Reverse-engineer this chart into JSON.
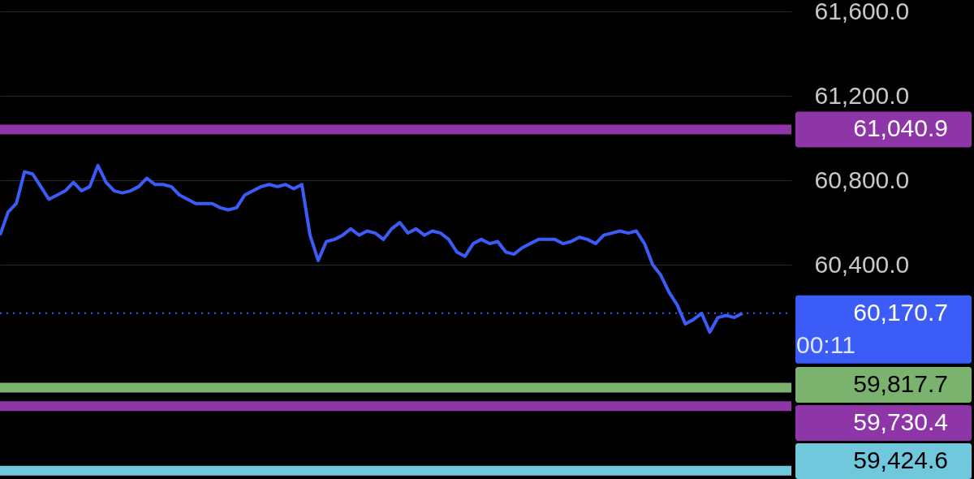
{
  "chart_data": {
    "type": "line",
    "categories": [
      null,
      null,
      null,
      null,
      null,
      null,
      null,
      null,
      null,
      null,
      null,
      null,
      null,
      null,
      null,
      null,
      null,
      null,
      null,
      null,
      null,
      null,
      null,
      null,
      null,
      null,
      null,
      null,
      null,
      null,
      null,
      null,
      null,
      null,
      null,
      null,
      null,
      null,
      null,
      null,
      null,
      null,
      null,
      null,
      null,
      null,
      null,
      null,
      null,
      null,
      null,
      null,
      null,
      null,
      null,
      null,
      null,
      null,
      null,
      null,
      null,
      null,
      null,
      null,
      null,
      null,
      null,
      null,
      null,
      null,
      null,
      null,
      null,
      null,
      null,
      null,
      null,
      null,
      null,
      null,
      null,
      null,
      null,
      null,
      null,
      null,
      null,
      null,
      null,
      null,
      null,
      null,
      null,
      null,
      null,
      null,
      null,
      null
    ],
    "series": [
      {
        "color": "#3b5cf6",
        "values": [
          60540,
          60650,
          60690,
          60840,
          60830,
          60770,
          60710,
          60730,
          60750,
          60790,
          60750,
          60770,
          60870,
          60790,
          60750,
          60740,
          60750,
          60770,
          60810,
          60780,
          60780,
          60770,
          60730,
          60710,
          60690,
          60690,
          60690,
          60670,
          60660,
          60670,
          60730,
          60750,
          60770,
          60780,
          60770,
          60780,
          60760,
          60780,
          60540,
          60420,
          60510,
          60520,
          60540,
          60570,
          60540,
          60560,
          60550,
          60520,
          60570,
          60600,
          60550,
          60570,
          60540,
          60560,
          60550,
          60520,
          60460,
          60440,
          60500,
          60520,
          60500,
          60510,
          60460,
          60450,
          60480,
          60500,
          60520,
          60520,
          60520,
          60500,
          60510,
          60530,
          60520,
          60500,
          60540,
          60550,
          60560,
          60550,
          60560,
          60500,
          60400,
          60350,
          60270,
          60210,
          60120,
          60140,
          60170,
          60080,
          60150,
          60160,
          60150,
          60170,
          null,
          null,
          null,
          null,
          null,
          null
        ]
      }
    ],
    "ylim": [
      59385,
      61654
    ],
    "yticks": [
      {
        "value": 60400,
        "label": "60,400.0"
      },
      {
        "value": 60800,
        "label": "60,800.0"
      },
      {
        "value": 61200,
        "label": "61,200.0"
      },
      {
        "value": 61600,
        "label": "61,600.0"
      }
    ],
    "ref_lines": [
      {
        "axis": "y",
        "value": 61040.9,
        "label": "61,040.9",
        "color": "#8e35a8",
        "line_style": "solid"
      },
      {
        "axis": "y",
        "value": 60170.7,
        "label": "60,170.7",
        "color": "#3b5cf6",
        "line_style": "dotted"
      },
      {
        "axis": "y",
        "value": 59817.7,
        "label": "59,817.7",
        "color": "#7bb36e",
        "line_style": "solid"
      },
      {
        "axis": "y",
        "value": 59730.4,
        "label": "59,730.4",
        "color": "#8e35a8",
        "line_style": "solid"
      },
      {
        "axis": "y",
        "value": 59424.6,
        "label": "59,424.6",
        "color": "#6fc8dc",
        "line_style": "solid"
      }
    ],
    "annotations": [
      "00:11"
    ],
    "grid": "y",
    "tick_labels": "y",
    "line_style": "solid"
  }
}
